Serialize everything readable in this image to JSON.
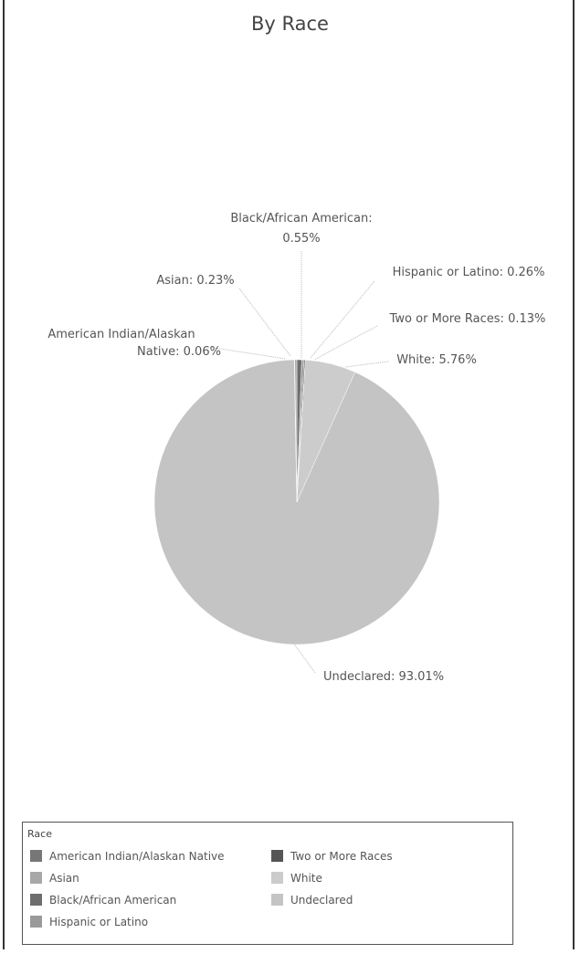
{
  "chart_data": {
    "type": "pie",
    "title": "By Race",
    "slices": [
      {
        "name": "Black/African American",
        "value": 0.55,
        "label": "Black/African American: 0.55%",
        "color": "#6e6e6e"
      },
      {
        "name": "Hispanic or Latino",
        "value": 0.26,
        "label": "Hispanic or Latino: 0.26%",
        "color": "#9a9a9a"
      },
      {
        "name": "Two or More Races",
        "value": 0.13,
        "label": "Two or More Races: 0.13%",
        "color": "#555555"
      },
      {
        "name": "White",
        "value": 5.76,
        "label": "White: 5.76%",
        "color": "#cccccc"
      },
      {
        "name": "Undeclared",
        "value": 93.01,
        "label": "Undeclared: 93.01%",
        "color": "#c4c4c4"
      },
      {
        "name": "American Indian/Alaskan Native",
        "value": 0.06,
        "label": "American Indian/Alaskan Native: 0.06%",
        "color": "#777777"
      },
      {
        "name": "Asian",
        "value": 0.23,
        "label": "Asian: 0.23%",
        "color": "#a8a8a8"
      }
    ],
    "legend": {
      "title": "Race",
      "placement": "bottom",
      "entries": [
        {
          "name": "American Indian/Alaskan Native",
          "color": "#777777"
        },
        {
          "name": "Asian",
          "color": "#a8a8a8"
        },
        {
          "name": "Black/African American",
          "color": "#6e6e6e"
        },
        {
          "name": "Hispanic or Latino",
          "color": "#9a9a9a"
        },
        {
          "name": "Two or More Races",
          "color": "#555555"
        },
        {
          "name": "White",
          "color": "#cccccc"
        },
        {
          "name": "Undeclared",
          "color": "#c4c4c4"
        }
      ]
    }
  }
}
